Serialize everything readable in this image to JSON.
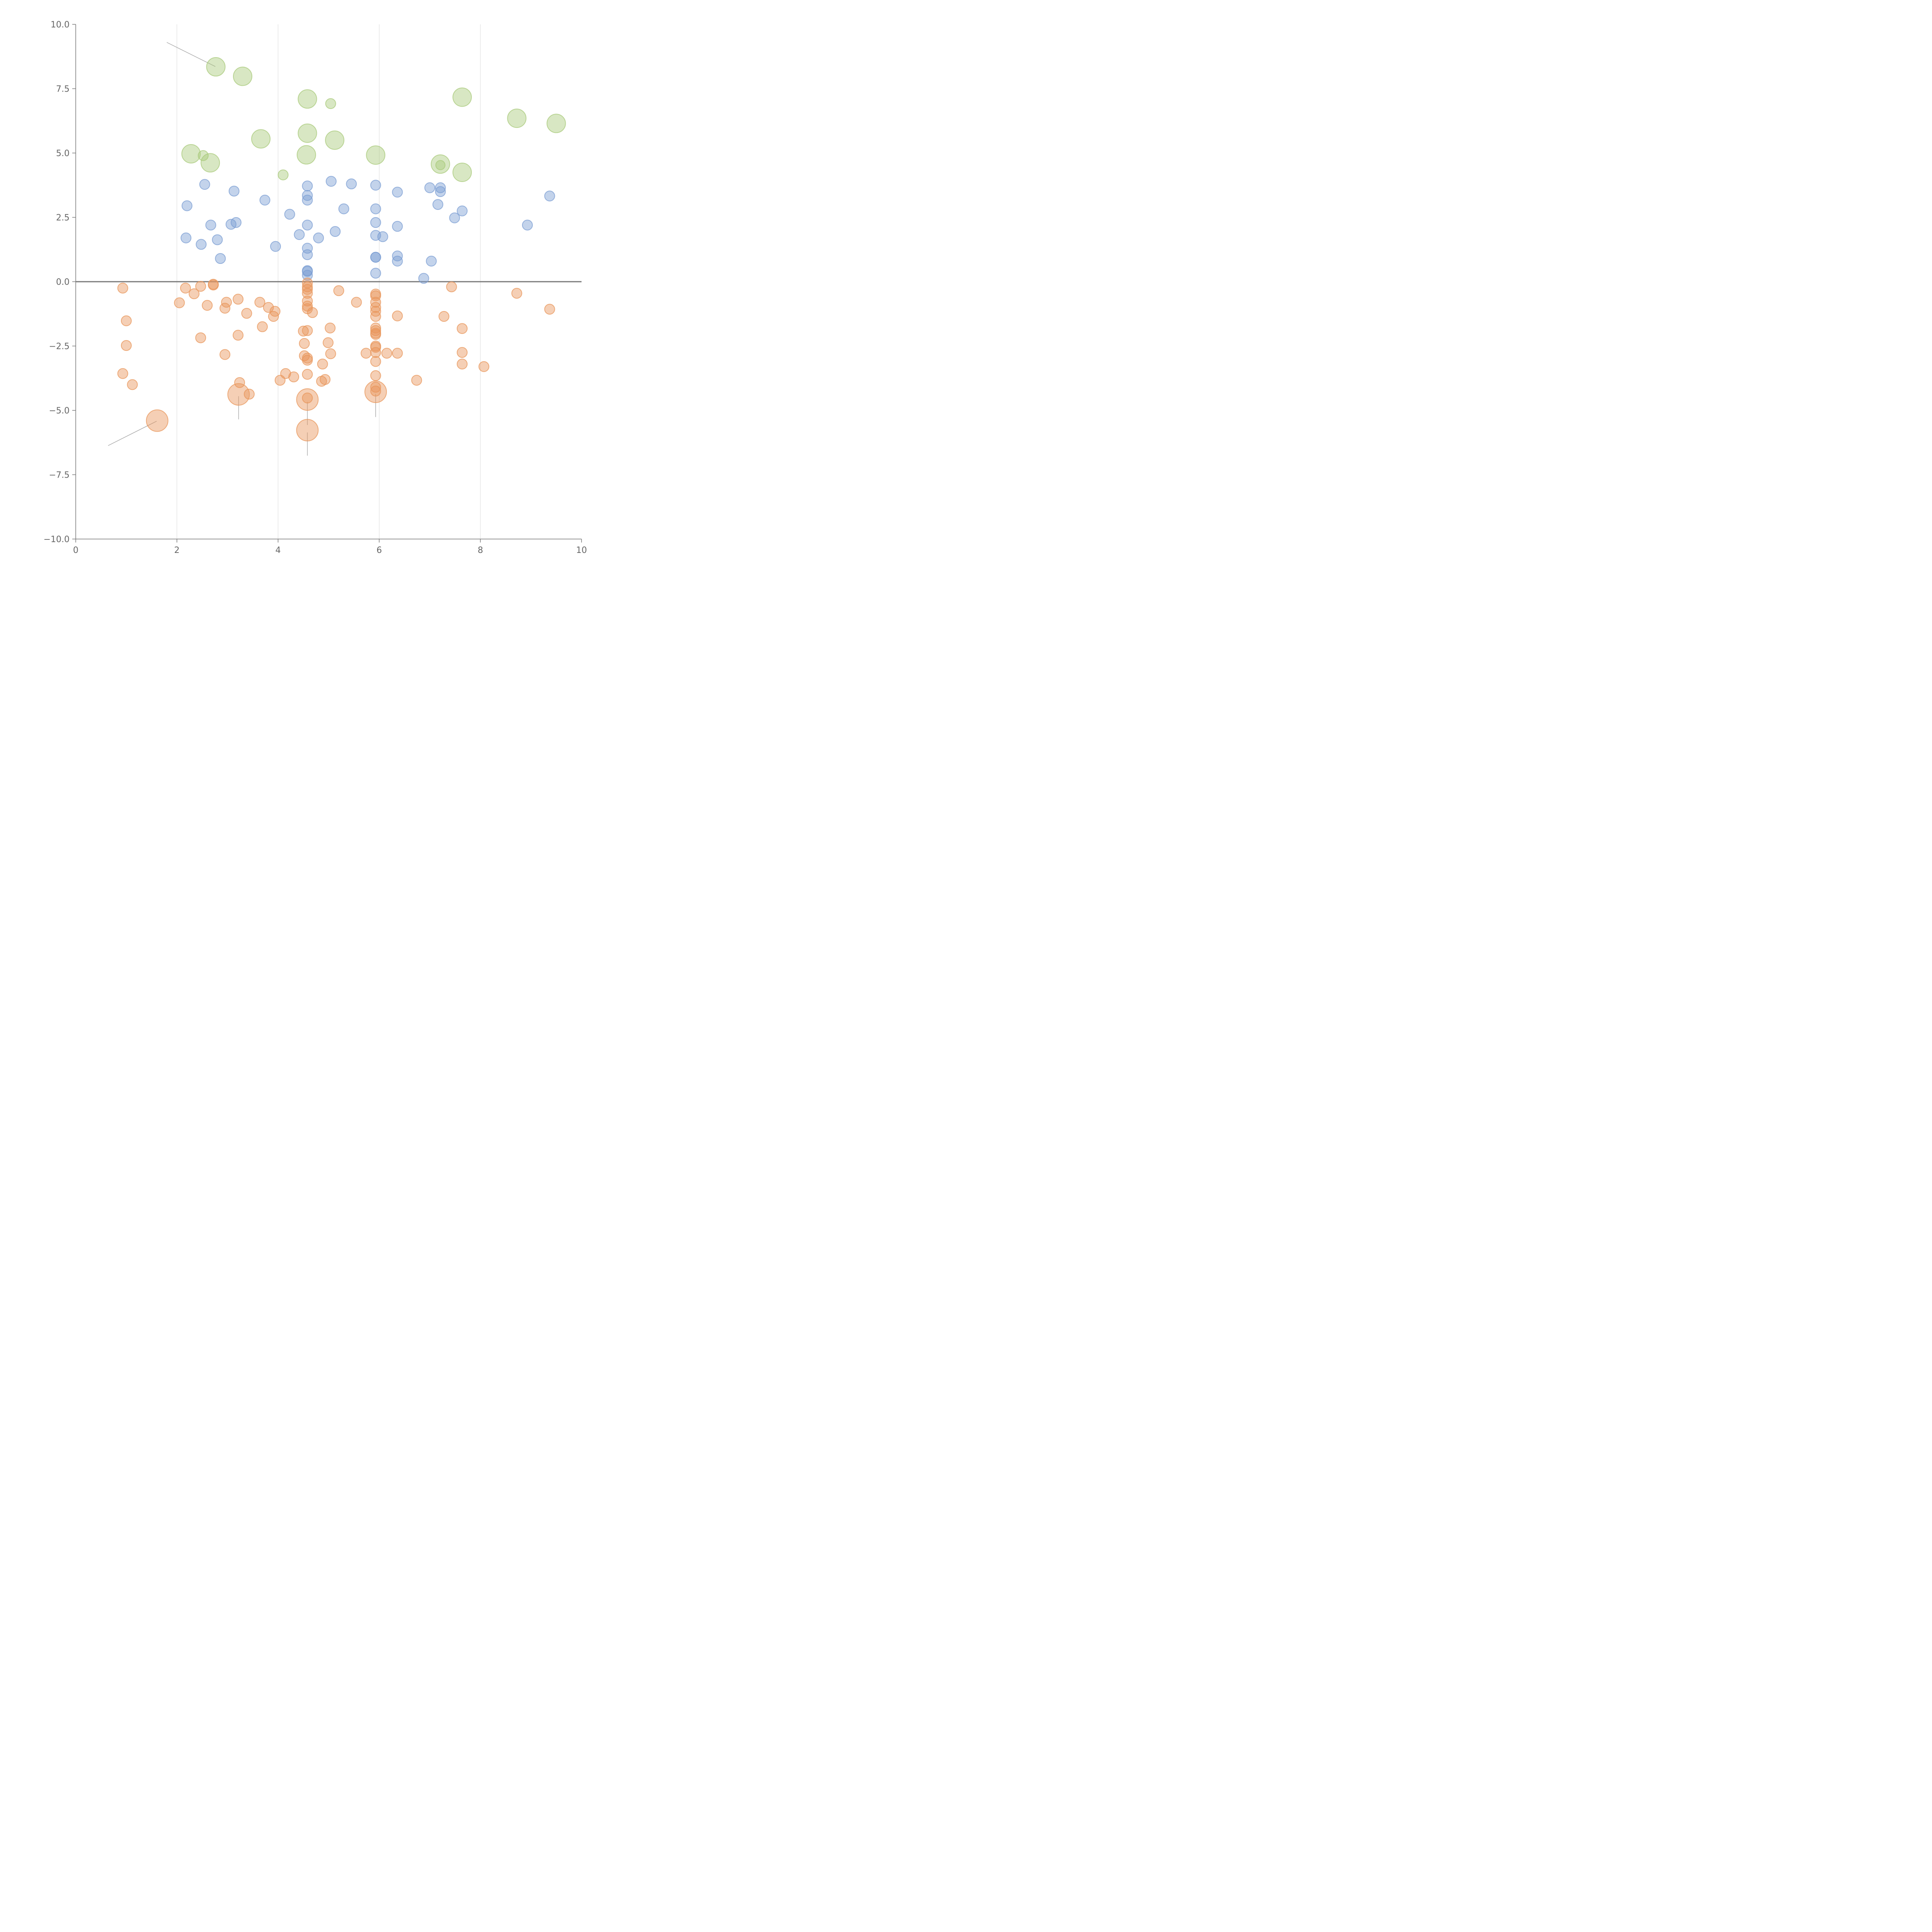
{
  "chart_data": {
    "type": "scatter",
    "title": "",
    "xlabel": "",
    "ylabel": "",
    "xlim": [
      0,
      10
    ],
    "ylim": [
      -10,
      10
    ],
    "x_ticks": [
      "0",
      "2",
      "4",
      "6",
      "8",
      "10"
    ],
    "y_ticks": [
      "10.0",
      "7.5",
      "5.0",
      "2.5",
      "0.0",
      "−2.5",
      "−5.0",
      "−7.5",
      "−10.0"
    ],
    "x_grid": [
      2,
      4,
      6,
      8
    ],
    "reference_line_y": 0,
    "grid": "vertical",
    "legend": "none",
    "colors": {
      "green": "#a8c97a",
      "blue": "#7b9ed3",
      "orange": "#e8955a",
      "leader": "#aaaaaa"
    },
    "series": [
      {
        "color": "green",
        "points": [
          [
            2.77,
            8.35,
            24
          ],
          [
            3.3,
            7.98,
            24
          ],
          [
            4.58,
            7.1,
            24
          ],
          [
            5.04,
            6.92,
            13
          ],
          [
            7.64,
            7.17,
            24
          ],
          [
            8.72,
            6.35,
            24
          ],
          [
            9.5,
            6.15,
            24
          ],
          [
            3.66,
            5.55,
            24
          ],
          [
            4.58,
            5.77,
            24
          ],
          [
            5.12,
            5.5,
            24
          ],
          [
            2.28,
            4.97,
            24
          ],
          [
            2.52,
            4.9,
            13
          ],
          [
            2.66,
            4.62,
            24
          ],
          [
            4.56,
            4.93,
            24
          ],
          [
            5.93,
            4.92,
            24
          ],
          [
            7.21,
            4.57,
            24
          ],
          [
            7.21,
            4.53,
            12
          ],
          [
            7.64,
            4.25,
            24
          ],
          [
            4.1,
            4.15,
            13
          ]
        ]
      },
      {
        "color": "blue",
        "points": [
          [
            2.55,
            3.78,
            13
          ],
          [
            3.13,
            3.52,
            13
          ],
          [
            3.74,
            3.17,
            13
          ],
          [
            2.2,
            2.95,
            13
          ],
          [
            4.23,
            2.62,
            13
          ],
          [
            4.58,
            3.72,
            13
          ],
          [
            4.58,
            3.35,
            13
          ],
          [
            4.58,
            3.17,
            13
          ],
          [
            5.05,
            3.9,
            13
          ],
          [
            5.45,
            3.8,
            13
          ],
          [
            5.93,
            3.75,
            13
          ],
          [
            6.36,
            3.48,
            13
          ],
          [
            7.0,
            3.65,
            13
          ],
          [
            7.21,
            3.65,
            13
          ],
          [
            7.21,
            3.5,
            13
          ],
          [
            7.16,
            3.0,
            13
          ],
          [
            9.37,
            3.33,
            13
          ],
          [
            5.3,
            2.83,
            13
          ],
          [
            5.93,
            2.83,
            13
          ],
          [
            7.64,
            2.75,
            13
          ],
          [
            7.49,
            2.48,
            13
          ],
          [
            2.67,
            2.2,
            13
          ],
          [
            3.07,
            2.23,
            13
          ],
          [
            3.17,
            2.3,
            13
          ],
          [
            4.58,
            2.2,
            13
          ],
          [
            5.93,
            2.3,
            13
          ],
          [
            6.36,
            2.15,
            13
          ],
          [
            8.93,
            2.2,
            13
          ],
          [
            2.18,
            1.7,
            13
          ],
          [
            2.48,
            1.45,
            13
          ],
          [
            2.8,
            1.63,
            13
          ],
          [
            4.42,
            1.83,
            13
          ],
          [
            4.8,
            1.7,
            13
          ],
          [
            5.13,
            1.95,
            13
          ],
          [
            5.93,
            1.8,
            13
          ],
          [
            6.07,
            1.75,
            13
          ],
          [
            3.95,
            1.37,
            13
          ],
          [
            4.58,
            1.3,
            13
          ],
          [
            4.58,
            1.05,
            13
          ],
          [
            2.86,
            0.9,
            13
          ],
          [
            5.93,
            0.95,
            13
          ],
          [
            5.93,
            0.95,
            13
          ],
          [
            6.36,
            1.0,
            13
          ],
          [
            6.36,
            0.8,
            13
          ],
          [
            7.03,
            0.8,
            13
          ],
          [
            4.58,
            0.43,
            13
          ],
          [
            4.58,
            0.4,
            13
          ],
          [
            4.58,
            0.25,
            13
          ],
          [
            5.93,
            0.33,
            13
          ],
          [
            6.88,
            0.13,
            13
          ]
        ]
      },
      {
        "color": "orange",
        "points": [
          [
            0.93,
            -0.25,
            13
          ],
          [
            2.17,
            -0.25,
            13
          ],
          [
            2.34,
            -0.47,
            13
          ],
          [
            2.47,
            -0.18,
            13
          ],
          [
            2.72,
            -0.1,
            13
          ],
          [
            2.72,
            -0.13,
            13
          ],
          [
            4.58,
            -0.05,
            13
          ],
          [
            4.58,
            -0.2,
            13
          ],
          [
            4.58,
            -0.3,
            13
          ],
          [
            4.58,
            -0.45,
            13
          ],
          [
            4.58,
            -0.75,
            13
          ],
          [
            4.58,
            -0.95,
            13
          ],
          [
            4.58,
            -1.05,
            13
          ],
          [
            4.68,
            -1.2,
            13
          ],
          [
            5.2,
            -0.35,
            13
          ],
          [
            5.93,
            -0.48,
            13
          ],
          [
            5.93,
            -0.55,
            13
          ],
          [
            5.93,
            -0.8,
            13
          ],
          [
            5.93,
            -1.0,
            13
          ],
          [
            5.93,
            -1.15,
            13
          ],
          [
            5.93,
            -1.35,
            13
          ],
          [
            7.43,
            -0.2,
            13
          ],
          [
            8.72,
            -0.45,
            13
          ],
          [
            9.37,
            -1.07,
            13
          ],
          [
            2.05,
            -0.82,
            13
          ],
          [
            2.98,
            -0.8,
            13
          ],
          [
            3.21,
            -0.68,
            13
          ],
          [
            3.64,
            -0.8,
            13
          ],
          [
            3.81,
            -1.0,
            13
          ],
          [
            3.94,
            -1.15,
            13
          ],
          [
            3.91,
            -1.35,
            13
          ],
          [
            2.6,
            -0.92,
            13
          ],
          [
            2.95,
            -1.03,
            13
          ],
          [
            3.38,
            -1.23,
            13
          ],
          [
            5.55,
            -0.8,
            13
          ],
          [
            1.0,
            -1.52,
            13
          ],
          [
            3.69,
            -1.75,
            13
          ],
          [
            5.03,
            -1.8,
            13
          ],
          [
            5.93,
            -1.8,
            13
          ],
          [
            5.93,
            -1.9,
            13
          ],
          [
            5.93,
            -2.0,
            13
          ],
          [
            5.93,
            -2.05,
            13
          ],
          [
            4.5,
            -1.92,
            13
          ],
          [
            4.58,
            -1.9,
            13
          ],
          [
            6.36,
            -1.33,
            13
          ],
          [
            7.28,
            -1.35,
            13
          ],
          [
            7.64,
            -1.82,
            13
          ],
          [
            2.47,
            -2.18,
            13
          ],
          [
            3.21,
            -2.08,
            13
          ],
          [
            1.0,
            -2.48,
            13
          ],
          [
            4.52,
            -2.4,
            13
          ],
          [
            4.99,
            -2.37,
            13
          ],
          [
            5.93,
            -2.5,
            13
          ],
          [
            5.93,
            -2.55,
            13
          ],
          [
            5.93,
            -2.75,
            13
          ],
          [
            2.95,
            -2.83,
            13
          ],
          [
            4.52,
            -2.88,
            13
          ],
          [
            4.58,
            -2.97,
            13
          ],
          [
            4.58,
            -3.05,
            13
          ],
          [
            5.04,
            -2.8,
            13
          ],
          [
            5.74,
            -2.78,
            13
          ],
          [
            6.15,
            -2.78,
            13
          ],
          [
            6.36,
            -2.78,
            13
          ],
          [
            7.64,
            -2.75,
            13
          ],
          [
            4.88,
            -3.2,
            13
          ],
          [
            5.93,
            -3.1,
            13
          ],
          [
            7.64,
            -3.2,
            13
          ],
          [
            8.07,
            -3.3,
            13
          ],
          [
            0.93,
            -3.57,
            13
          ],
          [
            1.12,
            -4.0,
            13
          ],
          [
            3.24,
            -3.92,
            13
          ],
          [
            3.43,
            -4.37,
            13
          ],
          [
            4.04,
            -3.83,
            13
          ],
          [
            4.15,
            -3.57,
            13
          ],
          [
            4.31,
            -3.7,
            13
          ],
          [
            4.58,
            -3.6,
            13
          ],
          [
            4.86,
            -3.87,
            13
          ],
          [
            4.93,
            -3.8,
            13
          ],
          [
            5.93,
            -3.65,
            13
          ],
          [
            5.93,
            -4.1,
            13
          ],
          [
            5.93,
            -4.25,
            13
          ],
          [
            6.74,
            -3.83,
            13
          ],
          [
            3.22,
            -4.38,
            28
          ],
          [
            4.58,
            -4.58,
            28
          ],
          [
            4.58,
            -4.52,
            13
          ],
          [
            5.93,
            -4.28,
            28
          ],
          [
            1.61,
            -5.4,
            28
          ],
          [
            4.58,
            -5.77,
            28
          ]
        ]
      }
    ],
    "leaders": [
      [
        1.8,
        9.3,
        2.76,
        8.36
      ],
      [
        0.64,
        -6.37,
        1.6,
        -5.42
      ],
      [
        3.22,
        -4.45,
        3.22,
        -5.35
      ],
      [
        4.58,
        -4.67,
        4.58,
        -5.57
      ],
      [
        4.58,
        -5.86,
        4.58,
        -6.76
      ],
      [
        5.93,
        -4.36,
        5.93,
        -5.26
      ]
    ]
  }
}
